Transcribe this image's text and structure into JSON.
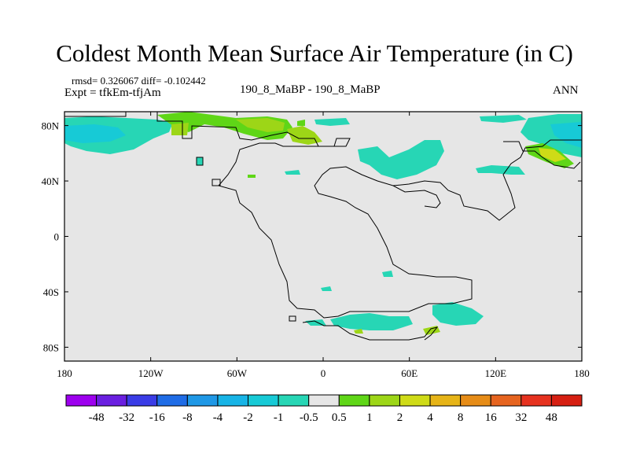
{
  "title": "Coldest Month Mean Surface Air Temperature (in C)",
  "stats_line": "rmsd= 0.326067 diff= -0.102442",
  "experiment_line": "Expt = tfkEm-tfjAm",
  "case_label": "190_8_MaBP - 190_8_MaBP",
  "season_label": "ANN",
  "map": {
    "background_color": "#e6e6e6",
    "lat_ticks": [
      {
        "value": 80,
        "label": "80N"
      },
      {
        "value": 40,
        "label": "40N"
      },
      {
        "value": 0,
        "label": "0"
      },
      {
        "value": -40,
        "label": "40S"
      },
      {
        "value": -80,
        "label": "80S"
      }
    ],
    "lon_ticks": [
      {
        "value": -180,
        "label": "180"
      },
      {
        "value": -120,
        "label": "120W"
      },
      {
        "value": -60,
        "label": "60W"
      },
      {
        "value": 0,
        "label": "0"
      },
      {
        "value": 60,
        "label": "60E"
      },
      {
        "value": 120,
        "label": "120E"
      },
      {
        "value": 180,
        "label": "180"
      }
    ]
  },
  "colorbar": {
    "labels": [
      "-48",
      "-32",
      "-16",
      "-8",
      "-4",
      "-2",
      "-1",
      "-0.5",
      "0.5",
      "1",
      "2",
      "4",
      "8",
      "16",
      "32",
      "48"
    ],
    "colors": [
      "#9d00ee",
      "#6a1fe0",
      "#3a3ce6",
      "#1f6ce6",
      "#1f98e6",
      "#17b4e6",
      "#17cad6",
      "#27d6b5",
      "#e6e6e6",
      "#5fd617",
      "#9dd617",
      "#cfdb17",
      "#e6b417",
      "#e68c17",
      "#e6641f",
      "#e6321f",
      "#d61f12"
    ]
  }
}
